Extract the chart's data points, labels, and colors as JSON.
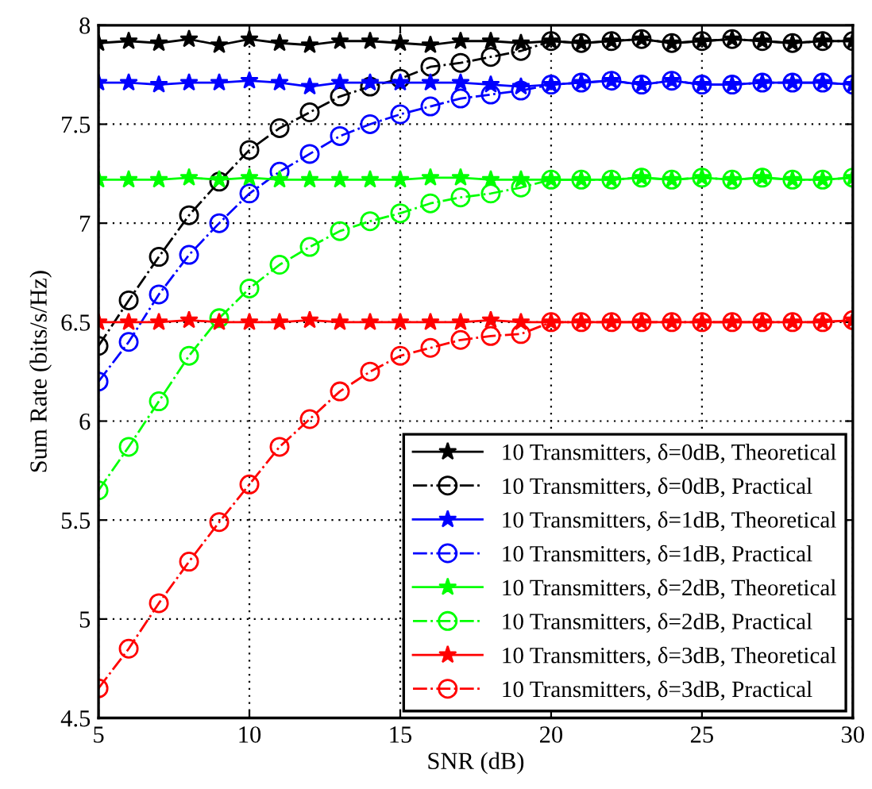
{
  "chart_data": {
    "type": "line",
    "xlabel": "SNR (dB)",
    "ylabel": "Sum Rate (bits/s/Hz)",
    "x": [
      5,
      6,
      7,
      8,
      9,
      10,
      11,
      12,
      13,
      14,
      15,
      16,
      17,
      18,
      19,
      20,
      21,
      22,
      23,
      24,
      25,
      26,
      27,
      28,
      29,
      30
    ],
    "xlim": [
      5,
      30
    ],
    "xticks": [
      5,
      10,
      15,
      20,
      25,
      30
    ],
    "ylim": [
      4.5,
      8
    ],
    "yticks": [
      4.5,
      5,
      5.5,
      6,
      6.5,
      7,
      7.5,
      8
    ],
    "grid": true,
    "legend": "bottom right",
    "series": [
      {
        "name": "10 Transmitters, δ=0dB, Theoretical",
        "color": "#000000",
        "marker": "star",
        "line_style": "solid",
        "values": [
          7.91,
          7.92,
          7.91,
          7.93,
          7.9,
          7.93,
          7.91,
          7.9,
          7.92,
          7.92,
          7.91,
          7.9,
          7.92,
          7.92,
          7.91,
          7.92,
          7.91,
          7.92,
          7.93,
          7.91,
          7.92,
          7.93,
          7.92,
          7.91,
          7.92,
          7.92
        ]
      },
      {
        "name": "10 Transmitters, δ=0dB, Practical",
        "color": "#000000",
        "marker": "circle",
        "line_style": "dashdot",
        "values": [
          6.38,
          6.61,
          6.83,
          7.04,
          7.21,
          7.37,
          7.48,
          7.56,
          7.64,
          7.69,
          7.73,
          7.79,
          7.81,
          7.84,
          7.87,
          7.92,
          7.91,
          7.92,
          7.93,
          7.91,
          7.92,
          7.93,
          7.92,
          7.91,
          7.92,
          7.92
        ]
      },
      {
        "name": "10 Transmitters, δ=1dB, Theoretical",
        "color": "#0000ff",
        "marker": "star",
        "line_style": "solid",
        "values": [
          7.71,
          7.71,
          7.7,
          7.71,
          7.71,
          7.72,
          7.71,
          7.69,
          7.71,
          7.71,
          7.71,
          7.71,
          7.71,
          7.7,
          7.69,
          7.7,
          7.71,
          7.72,
          7.7,
          7.72,
          7.7,
          7.7,
          7.71,
          7.71,
          7.71,
          7.7
        ]
      },
      {
        "name": "10 Transmitters, δ=1dB, Practical",
        "color": "#0000ff",
        "marker": "circle",
        "line_style": "dashdot",
        "values": [
          6.2,
          6.4,
          6.64,
          6.84,
          7.0,
          7.15,
          7.26,
          7.35,
          7.44,
          7.5,
          7.55,
          7.59,
          7.63,
          7.65,
          7.67,
          7.7,
          7.71,
          7.72,
          7.7,
          7.72,
          7.7,
          7.7,
          7.71,
          7.71,
          7.71,
          7.7
        ]
      },
      {
        "name": "10 Transmitters, δ=2dB, Theoretical",
        "color": "#00ff00",
        "marker": "star",
        "line_style": "solid",
        "values": [
          7.22,
          7.22,
          7.22,
          7.23,
          7.22,
          7.23,
          7.22,
          7.22,
          7.22,
          7.22,
          7.22,
          7.23,
          7.23,
          7.22,
          7.22,
          7.22,
          7.22,
          7.22,
          7.23,
          7.22,
          7.23,
          7.22,
          7.23,
          7.22,
          7.22,
          7.23
        ]
      },
      {
        "name": "10 Transmitters, δ=2dB, Practical",
        "color": "#00ff00",
        "marker": "circle",
        "line_style": "dashdot",
        "values": [
          5.65,
          5.87,
          6.1,
          6.33,
          6.52,
          6.67,
          6.79,
          6.88,
          6.96,
          7.01,
          7.05,
          7.1,
          7.13,
          7.15,
          7.18,
          7.22,
          7.22,
          7.22,
          7.23,
          7.22,
          7.23,
          7.22,
          7.23,
          7.22,
          7.22,
          7.23
        ]
      },
      {
        "name": "10 Transmitters, δ=3dB, Theoretical",
        "color": "#ff0000",
        "marker": "star",
        "line_style": "solid",
        "values": [
          6.5,
          6.5,
          6.5,
          6.51,
          6.5,
          6.5,
          6.5,
          6.51,
          6.5,
          6.5,
          6.5,
          6.5,
          6.5,
          6.51,
          6.5,
          6.5,
          6.5,
          6.5,
          6.5,
          6.5,
          6.5,
          6.5,
          6.5,
          6.5,
          6.5,
          6.51
        ]
      },
      {
        "name": "10 Transmitters, δ=3dB, Practical",
        "color": "#ff0000",
        "marker": "circle",
        "line_style": "dashdot",
        "values": [
          4.65,
          4.85,
          5.08,
          5.29,
          5.49,
          5.68,
          5.87,
          6.01,
          6.15,
          6.25,
          6.33,
          6.37,
          6.41,
          6.43,
          6.44,
          6.5,
          6.5,
          6.5,
          6.5,
          6.5,
          6.5,
          6.5,
          6.5,
          6.5,
          6.5,
          6.51
        ]
      }
    ]
  }
}
